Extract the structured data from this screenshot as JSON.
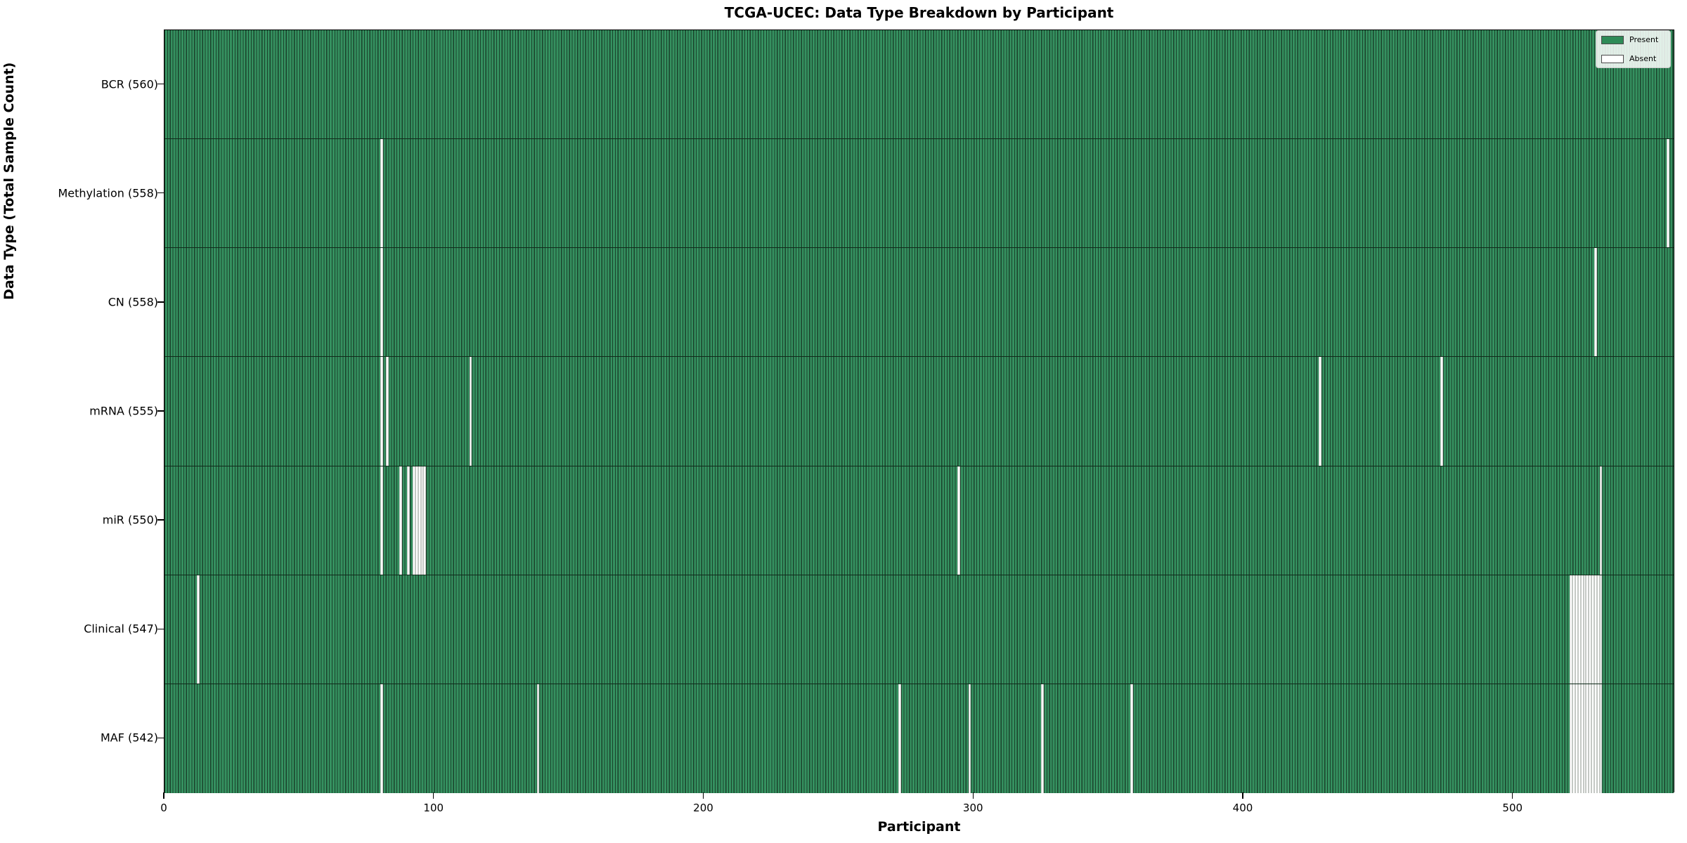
{
  "title": "TCGA-UCEC: Data Type Breakdown by Participant",
  "xlabel": "Participant",
  "ylabel": "Data Type (Total Sample Count)",
  "legend": {
    "present_label": "Present",
    "absent_label": "Absent"
  },
  "colors": {
    "present_fill": "#359160",
    "present_edge": "#1a422b",
    "absent_fill": "#ffffff",
    "absent_edge": "#c4c8c4",
    "legend_present": "#2e8b57",
    "axis": "#000000"
  },
  "chart_data": {
    "type": "heatmap",
    "title": "TCGA-UCEC: Data Type Breakdown by Participant",
    "xlabel": "Participant",
    "ylabel": "Data Type (Total Sample Count)",
    "legend_entries": [
      "Present",
      "Absent"
    ],
    "legend_position": "upper right",
    "grid": false,
    "total_participants": 560,
    "x_ticks": [
      0,
      100,
      200,
      300,
      400,
      500
    ],
    "x_range": [
      0,
      560
    ],
    "rows": [
      {
        "name": "BCR",
        "label": "BCR (560)",
        "present_count": 560,
        "absent_participants": []
      },
      {
        "name": "Methylation",
        "label": "Methylation (558)",
        "present_count": 558,
        "absent_participants": [
          80,
          557
        ]
      },
      {
        "name": "CN",
        "label": "CN (558)",
        "present_count": 558,
        "absent_participants": [
          80,
          530
        ]
      },
      {
        "name": "mRNA",
        "label": "mRNA (555)",
        "present_count": 555,
        "absent_participants": [
          80,
          82,
          113,
          428,
          473
        ]
      },
      {
        "name": "miR",
        "label": "miR (550)",
        "present_count": 550,
        "absent_participants": [
          80,
          87,
          90,
          92,
          93,
          94,
          95,
          96,
          294,
          532
        ]
      },
      {
        "name": "Clinical",
        "label": "Clinical (547)",
        "present_count": 547,
        "absent_participants": [
          12,
          521,
          522,
          523,
          524,
          525,
          526,
          527,
          528,
          529,
          530,
          531,
          532
        ]
      },
      {
        "name": "MAF",
        "label": "MAF (542)",
        "present_count": 542,
        "absent_participants": [
          80,
          138,
          272,
          298,
          325,
          358,
          521,
          522,
          523,
          524,
          525,
          526,
          527,
          528,
          529,
          530,
          531,
          532
        ]
      }
    ]
  }
}
